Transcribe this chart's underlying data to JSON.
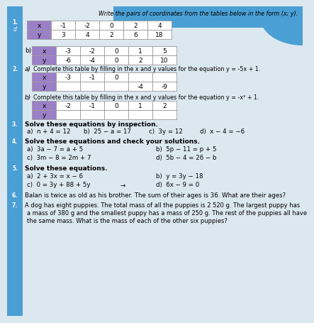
{
  "bg_top_color": "#4a9fd4",
  "bg_page_color": "#dce8f0",
  "left_margin_color": "#4a9fd4",
  "table_header_color": "#9b7fc7",
  "table_border_color": "#999999",
  "section1_title": "Write the pairs of coordinates from the tables below in the form (x; y).",
  "table_a_number": "1.",
  "table_a_sublabel": "d",
  "table_a_x": [
    "-1",
    "-2",
    "0",
    "2",
    "4"
  ],
  "table_a_y": [
    "3",
    "4",
    "2",
    "6",
    "18"
  ],
  "table_b_sublabel": "b)",
  "table_b_x": [
    "-3",
    "-2",
    "0",
    "1",
    "5"
  ],
  "table_b_y": [
    "-6",
    "-4",
    "0",
    "2",
    "10"
  ],
  "section2_number": "2.",
  "section2a_label": "a)",
  "section2a_title": "Complete this table by filling in the x and y values for the equation y = -5x + 1.",
  "table2a_x": [
    "-3",
    "-1",
    "0",
    "",
    ""
  ],
  "table2a_y": [
    "",
    "",
    "",
    "-4",
    "-9"
  ],
  "section2b_label": "b)",
  "section2b_title": "Complete this table by filling in the x and y values for the equation y = -x² + 1.",
  "table2b_x": [
    "-2",
    "-1",
    "0",
    "1",
    "2"
  ],
  "table2b_y": [
    "",
    "",
    "",
    "",
    ""
  ],
  "section3_number": "3.",
  "section3_title": "Solve these equations by inspection.",
  "s3a": "a)  n + 4 = 12",
  "s3b": "b)  25 − a = 17",
  "s3c": "c)  3y = 12",
  "s3d": "d)  x − 4 = −6",
  "section4_number": "4.",
  "section4_title": "Solve these equations and check your solutions.",
  "s4a": "a)  3a − 7 = a + 5",
  "s4b": "b)  5p − 11 = p + 5",
  "s4c": "c)  3m − 8 = 2m + 7",
  "s4d": "d)  5b − 4 = 26 − b",
  "section5_number": "5.",
  "section5_title": "Solve these equations.",
  "s5a": "a)  2 + 3x = x − 6",
  "s5b": "b)  y = 3y − 18",
  "s5c": "c)  0 = 3y + 88 + 5y",
  "s5c_arrow": "→",
  "s5d": "d)  6x − 9 = 0",
  "section6_number": "6.",
  "section6_text": "Balan is twice as old as his brother. The sum of their ages is 36. What are their ages?",
  "section7_number": "7.",
  "section7_line1": "A dog has eight puppies. The total mass of all the puppies is 2 520 g. The largest puppy has",
  "section7_line2": "a mass of 380 g and the smallest puppy has a mass of 250 g. The rest of the puppies all have",
  "section7_line3": "the same mass. What is the mass of each of the other six puppies?"
}
